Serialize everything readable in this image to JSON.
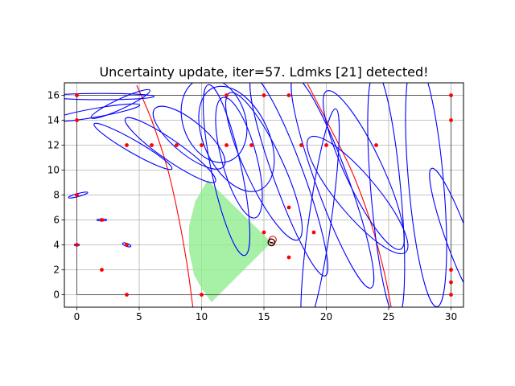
{
  "chart_data": {
    "type": "scatter",
    "title": "Uncertainty update, iter=57. Ldmks [21] detected!",
    "xlabel": "",
    "ylabel": "",
    "xlim": [
      -1,
      31
    ],
    "ylim": [
      -1,
      17
    ],
    "xticks": [
      0,
      5,
      10,
      15,
      20,
      25,
      30
    ],
    "yticks": [
      0,
      2,
      4,
      6,
      8,
      10,
      12,
      14,
      16
    ],
    "grid": true,
    "colors": {
      "landmarks": "#ff0000",
      "ellipses": "#0000ff",
      "fov": "#90ee90",
      "trajectory": "#ff0000",
      "map_border": "#000000",
      "robot": "#000000",
      "grid": "#b0b0b0"
    },
    "landmarks": [
      [
        0,
        16
      ],
      [
        0,
        14
      ],
      [
        0,
        8
      ],
      [
        0,
        4
      ],
      [
        2,
        6
      ],
      [
        2,
        2
      ],
      [
        4,
        4
      ],
      [
        4,
        0
      ],
      [
        4,
        12
      ],
      [
        6,
        12
      ],
      [
        8,
        12
      ],
      [
        10,
        12
      ],
      [
        10,
        0
      ],
      [
        12,
        16
      ],
      [
        12,
        12
      ],
      [
        14,
        12
      ],
      [
        15,
        16
      ],
      [
        15,
        5
      ],
      [
        17,
        16
      ],
      [
        17,
        7
      ],
      [
        17,
        3
      ],
      [
        18,
        12
      ],
      [
        19,
        5
      ],
      [
        20,
        12
      ],
      [
        24,
        12
      ],
      [
        30,
        16
      ],
      [
        30,
        14
      ],
      [
        30,
        2
      ],
      [
        30,
        1
      ],
      [
        30,
        0
      ]
    ],
    "map_border": [
      [
        0,
        0
      ],
      [
        30,
        0
      ],
      [
        30,
        16
      ],
      [
        0,
        16
      ]
    ],
    "robot": {
      "x": 15.6,
      "y": 4.2
    },
    "robot_estimate": {
      "x": 15.7,
      "y": 4.4
    },
    "field_of_view": {
      "apex": [
        15.6,
        4.2
      ],
      "polygon": [
        [
          15.6,
          4.2
        ],
        [
          10.5,
          9.2
        ],
        [
          9.5,
          7.5
        ],
        [
          9.0,
          5.5
        ],
        [
          9.0,
          3.5
        ],
        [
          9.4,
          1.6
        ],
        [
          10.0,
          0.5
        ],
        [
          10.8,
          -0.6
        ]
      ]
    },
    "trajectory_arcs": [
      [
        [
          4.8,
          16.8
        ],
        [
          6.0,
          14.0
        ],
        [
          7.3,
          10.0
        ],
        [
          8.2,
          6.0
        ],
        [
          8.9,
          2.0
        ],
        [
          9.3,
          -1.0
        ]
      ],
      [
        [
          18.5,
          16.9
        ],
        [
          20.0,
          14.0
        ],
        [
          22.0,
          10.0
        ],
        [
          23.5,
          6.0
        ],
        [
          24.6,
          2.0
        ],
        [
          25.2,
          -1.0
        ]
      ]
    ],
    "uncertainty_ellipses": [
      {
        "cx": 2.0,
        "cy": 15.9,
        "rx": 4.2,
        "ry": 0.25,
        "angle": 0
      },
      {
        "cx": 1.5,
        "cy": 14.6,
        "rx": 3.6,
        "ry": 0.35,
        "angle": 10
      },
      {
        "cx": 0.1,
        "cy": 8.0,
        "rx": 0.8,
        "ry": 0.12,
        "angle": 15
      },
      {
        "cx": 2.0,
        "cy": 6.0,
        "rx": 0.4,
        "ry": 0.08,
        "angle": 0
      },
      {
        "cx": 4.0,
        "cy": 4.0,
        "rx": 0.35,
        "ry": 0.12,
        "angle": -20
      },
      {
        "cx": 0.0,
        "cy": 4.0,
        "rx": 0.2,
        "ry": 0.08,
        "angle": 0
      },
      {
        "cx": 3.5,
        "cy": 15.3,
        "rx": 2.6,
        "ry": 0.4,
        "angle": 25
      },
      {
        "cx": 4.5,
        "cy": 11.9,
        "rx": 3.6,
        "ry": 0.5,
        "angle": -30
      },
      {
        "cx": 7.5,
        "cy": 11.6,
        "rx": 4.4,
        "ry": 0.8,
        "angle": -35
      },
      {
        "cx": 9.0,
        "cy": 12.6,
        "rx": 3.6,
        "ry": 1.3,
        "angle": -40
      },
      {
        "cx": 12.8,
        "cy": 12.5,
        "rx": 2.6,
        "ry": 4.5,
        "angle": 25
      },
      {
        "cx": 13.0,
        "cy": 11.0,
        "rx": 1.4,
        "ry": 5.0,
        "angle": 15
      },
      {
        "cx": 12.0,
        "cy": 10.0,
        "rx": 1.2,
        "ry": 7.0,
        "angle": 12
      },
      {
        "cx": 15.0,
        "cy": 10.3,
        "rx": 1.5,
        "ry": 6.5,
        "angle": 25
      },
      {
        "cx": 11.0,
        "cy": 14.0,
        "rx": 2.5,
        "ry": 3.5,
        "angle": 20
      },
      {
        "cx": 17.0,
        "cy": 9.5,
        "rx": 1.2,
        "ry": 8.5,
        "angle": 20
      },
      {
        "cx": 20.5,
        "cy": 9.0,
        "rx": 1.3,
        "ry": 9.0,
        "angle": 20
      },
      {
        "cx": 23.0,
        "cy": 10.0,
        "rx": 1.5,
        "ry": 7.0,
        "angle": 25
      },
      {
        "cx": 22.5,
        "cy": 8.0,
        "rx": 1.6,
        "ry": 6.0,
        "angle": 40
      },
      {
        "cx": 24.8,
        "cy": 8.0,
        "rx": 1.2,
        "ry": 10.0,
        "angle": 5
      },
      {
        "cx": 28.0,
        "cy": 9.0,
        "rx": 1.4,
        "ry": 10.0,
        "angle": 5
      },
      {
        "cx": 30.5,
        "cy": 4.5,
        "rx": 0.9,
        "ry": 6.0,
        "angle": 20
      },
      {
        "cx": 19.5,
        "cy": 6.0,
        "rx": 0.9,
        "ry": 9.0,
        "angle": -8
      }
    ]
  }
}
